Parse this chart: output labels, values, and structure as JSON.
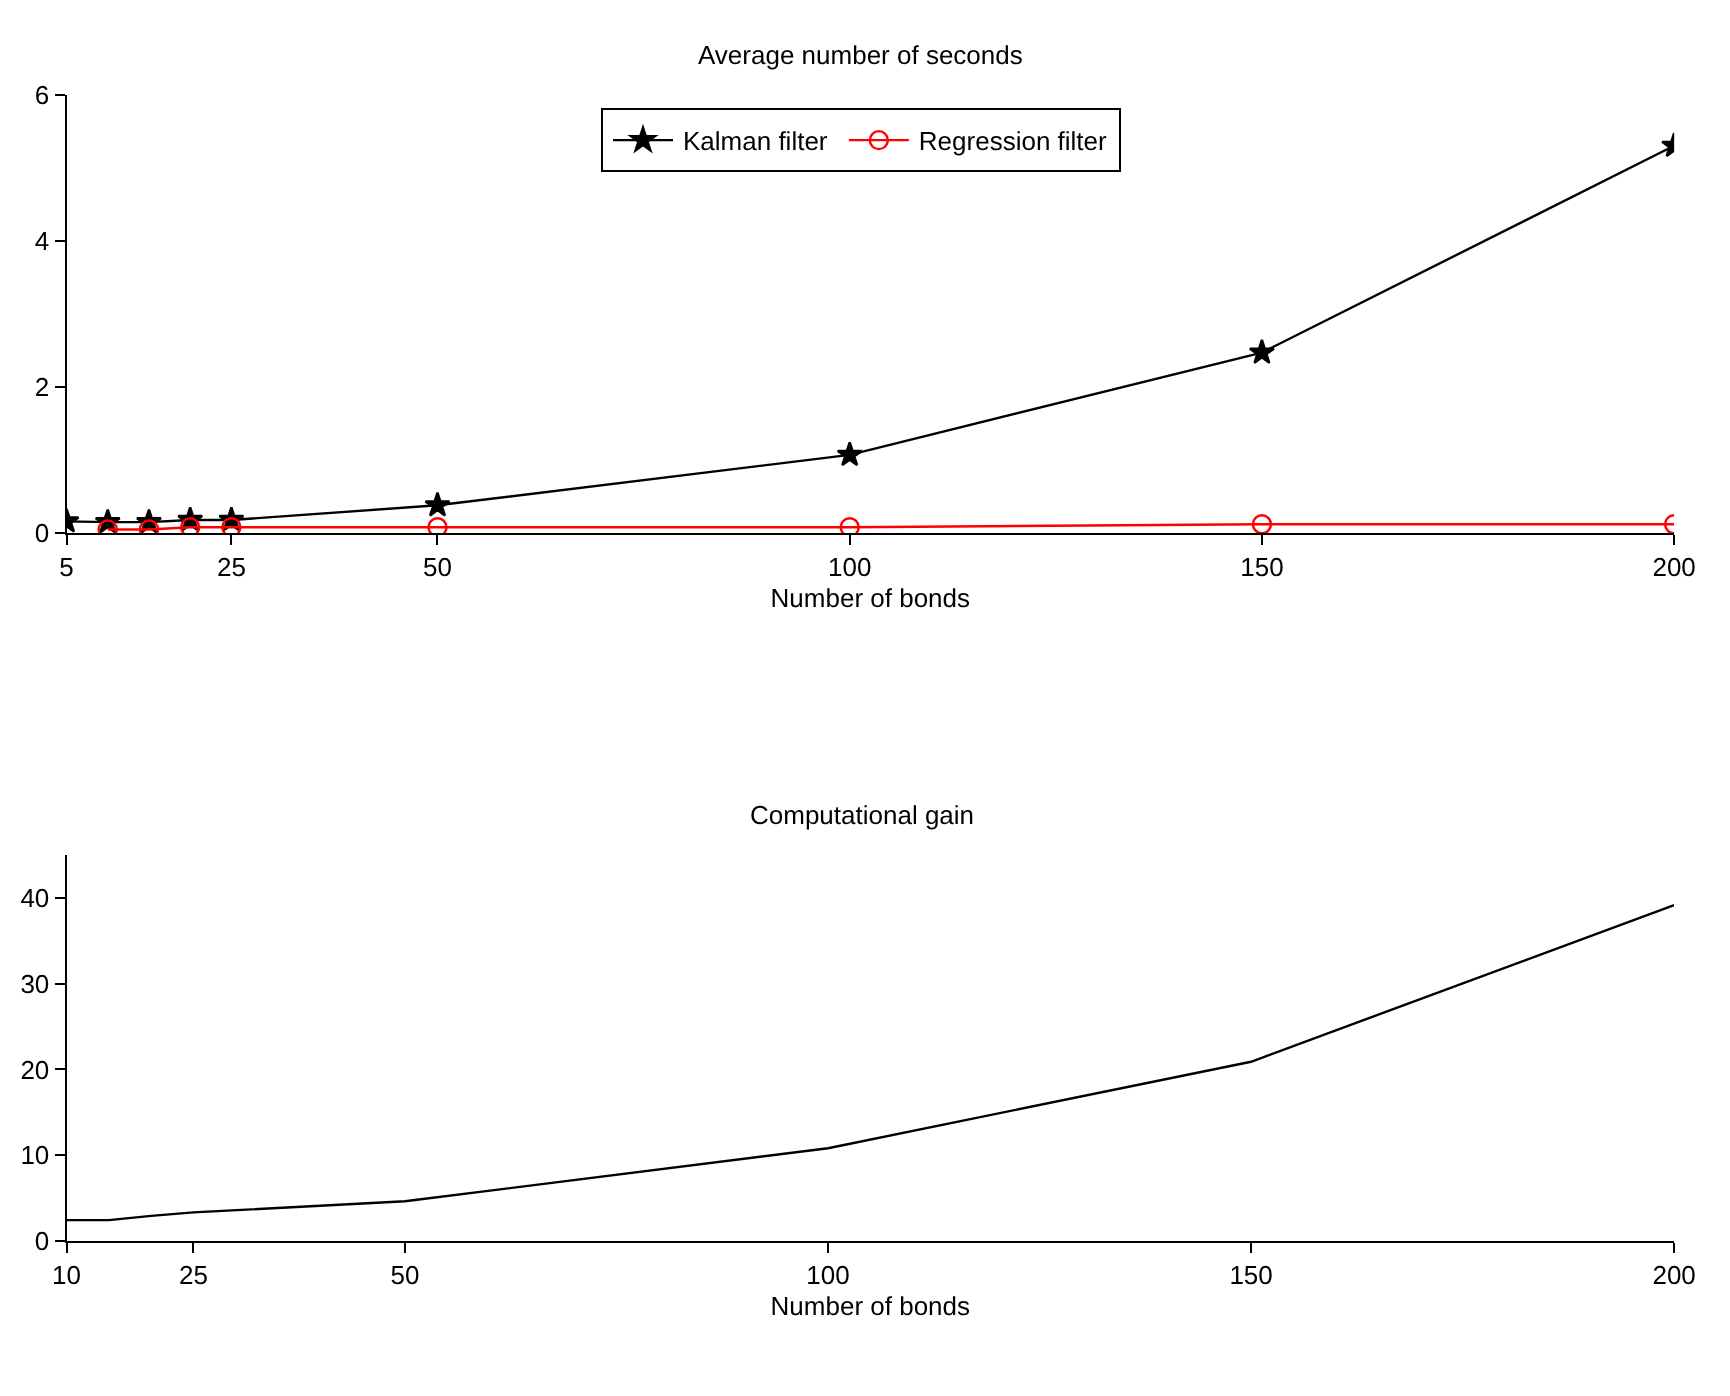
{
  "chart_data": [
    {
      "type": "line",
      "title": "Average number of seconds",
      "xlabel": "Number of bonds",
      "xlim": [
        5,
        200
      ],
      "xticks": [
        5,
        25,
        50,
        100,
        150,
        200
      ],
      "ylim": [
        0,
        6
      ],
      "yticks": [
        0,
        2,
        4,
        6
      ],
      "legend": "top",
      "series": [
        {
          "name": "Kalman filter",
          "color": "#000000",
          "marker": "star",
          "x": [
            5,
            10,
            15,
            20,
            25,
            50,
            100,
            150,
            200
          ],
          "values": [
            0.16,
            0.15,
            0.15,
            0.18,
            0.18,
            0.38,
            1.07,
            2.47,
            5.3
          ]
        },
        {
          "name": "Regression filter",
          "color": "#ff0000",
          "marker": "circle",
          "x": [
            10,
            15,
            20,
            25,
            50,
            100,
            150,
            200
          ],
          "values": [
            0.05,
            0.05,
            0.08,
            0.08,
            0.08,
            0.08,
            0.12,
            0.12
          ]
        }
      ]
    },
    {
      "type": "line",
      "title": "Computational gain",
      "xlabel": "Number of bonds",
      "xlim": [
        10,
        200
      ],
      "xticks": [
        10,
        25,
        50,
        100,
        150,
        200
      ],
      "ylim": [
        0,
        45
      ],
      "yticks": [
        0,
        10,
        20,
        30,
        40
      ],
      "legend": false,
      "series": [
        {
          "color": "#000000",
          "marker": "none",
          "x": [
            10,
            15,
            20,
            25,
            50,
            100,
            150,
            200
          ],
          "values": [
            2.4,
            2.4,
            2.9,
            3.3,
            4.6,
            10.8,
            20.9,
            39.2
          ]
        }
      ]
    }
  ]
}
